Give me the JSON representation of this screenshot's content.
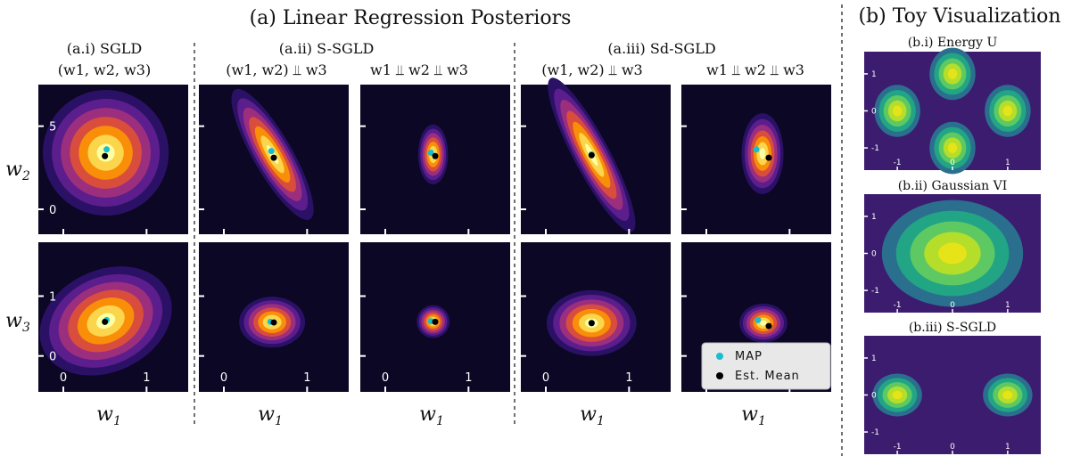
{
  "figure": {
    "title_a": "(a) Linear Regression Posteriors",
    "title_b": "(b) Toy Visualization",
    "xlabel": "w1",
    "ylabel_top": "w2",
    "ylabel_bottom": "w3",
    "col_titles": [
      {
        "title": "(a.i) SGLD",
        "sub": "(w1, w2, w3)"
      },
      {
        "title": "(a.ii) S-SGLD",
        "sub": "(w1, w2) ⫫ w3"
      },
      {
        "title": "",
        "sub": "w1 ⫫ w2 ⫫ w3"
      },
      {
        "title": "(a.iii) Sd-SGLD",
        "sub": "(w1, w2) ⫫ w3"
      },
      {
        "title": "",
        "sub": "w1 ⫫ w2 ⫫ w3"
      }
    ],
    "right_titles": [
      "(b.i) Energy U",
      "(b.ii) Gaussian VI",
      "(b.iii) S-SGLD"
    ],
    "legend": {
      "map": "MAP",
      "mean": "Est. Mean"
    },
    "colors": {
      "map": "#17becf",
      "mean": "#000000",
      "bg_left": "#0c0724",
      "bg_right": "#3b1c6e"
    }
  },
  "chart_data": [
    {
      "type": "contour",
      "panel": "a.i-top",
      "xlabel": "",
      "ylabel": "w2",
      "yticks": [
        0,
        5
      ],
      "map": [
        0.52,
        3.6
      ],
      "mean": [
        0.5,
        3.2
      ],
      "shape": {
        "sx": 0.42,
        "sy": 0.42,
        "rot": -35
      }
    },
    {
      "type": "contour",
      "panel": "a.i-bottom",
      "xlabel": "w1",
      "ylabel": "w3",
      "xticks": [
        0,
        1
      ],
      "yticks": [
        0,
        1
      ],
      "map": [
        0.52,
        0.6
      ],
      "mean": [
        0.5,
        0.57
      ],
      "shape": {
        "sx": 0.46,
        "sy": 0.34,
        "rot": -25
      }
    },
    {
      "type": "contour",
      "panel": "a.ii-top",
      "xlabel": "",
      "ylabel": "",
      "map": [
        0.57,
        3.5
      ],
      "mean": [
        0.6,
        3.1
      ],
      "shape": {
        "sx": 0.13,
        "sy": 0.5,
        "rot": -30
      }
    },
    {
      "type": "contour",
      "panel": "a.ii-bottom",
      "xlabel": "w1",
      "ylabel": "",
      "xticks": [
        0,
        1
      ],
      "map": [
        0.56,
        0.57
      ],
      "mean": [
        0.6,
        0.56
      ],
      "shape": {
        "sx": 0.22,
        "sy": 0.17,
        "rot": 0
      }
    },
    {
      "type": "contour",
      "panel": "a.ii-indep-top",
      "xlabel": "",
      "ylabel": "",
      "map": [
        0.55,
        3.4
      ],
      "mean": [
        0.6,
        3.2
      ],
      "shape": {
        "sx": 0.1,
        "sy": 0.2,
        "rot": 0
      }
    },
    {
      "type": "contour",
      "panel": "a.ii-indep-bottom",
      "xlabel": "w1",
      "ylabel": "",
      "xticks": [
        0,
        1
      ],
      "map": [
        0.55,
        0.58
      ],
      "mean": [
        0.6,
        0.57
      ],
      "shape": {
        "sx": 0.11,
        "sy": 0.11,
        "rot": 0
      }
    },
    {
      "type": "contour",
      "panel": "a.iii-top",
      "xlabel": "",
      "ylabel": "",
      "map": [
        0.55,
        3.3
      ],
      "mean": [
        0.55,
        3.25
      ],
      "shape": {
        "sx": 0.12,
        "sy": 0.58,
        "rot": -28
      }
    },
    {
      "type": "contour",
      "panel": "a.iii-bottom",
      "xlabel": "w1",
      "ylabel": "",
      "xticks": [
        0,
        1
      ],
      "map": [
        0.55,
        0.55
      ],
      "mean": [
        0.55,
        0.55
      ],
      "shape": {
        "sx": 0.3,
        "sy": 0.22,
        "rot": 0
      }
    },
    {
      "type": "contour",
      "panel": "a.iii-indep-top",
      "xlabel": "",
      "ylabel": "",
      "map": [
        0.6,
        3.6
      ],
      "mean": [
        0.75,
        3.1
      ],
      "shape": {
        "sx": 0.14,
        "sy": 0.27,
        "rot": 0
      }
    },
    {
      "type": "contour",
      "panel": "a.iii-indep-bottom",
      "xlabel": "w1",
      "ylabel": "",
      "xticks": [
        0,
        1
      ],
      "map": [
        0.62,
        0.6
      ],
      "mean": [
        0.75,
        0.5
      ],
      "shape": {
        "sx": 0.16,
        "sy": 0.13,
        "rot": 0
      }
    },
    {
      "type": "heatmap",
      "panel": "b.i",
      "title": "(b.i) Energy U",
      "xticks": [
        -1,
        0,
        1
      ],
      "yticks": [
        -1,
        0,
        1
      ],
      "modes": [
        [
          0,
          1
        ],
        [
          -1,
          0
        ],
        [
          1,
          0
        ],
        [
          0,
          -1
        ]
      ]
    },
    {
      "type": "heatmap",
      "panel": "b.ii",
      "title": "(b.ii) Gaussian VI",
      "xticks": [
        -1,
        0,
        1
      ],
      "yticks": [
        -1,
        0,
        1
      ],
      "modes": [
        [
          0,
          0
        ]
      ]
    },
    {
      "type": "heatmap",
      "panel": "b.iii",
      "title": "(b.iii) S-SGLD",
      "xticks": [
        -1,
        0,
        1
      ],
      "yticks": [
        -1,
        0,
        1
      ],
      "modes": [
        [
          -1,
          0
        ],
        [
          1,
          0
        ]
      ]
    }
  ]
}
